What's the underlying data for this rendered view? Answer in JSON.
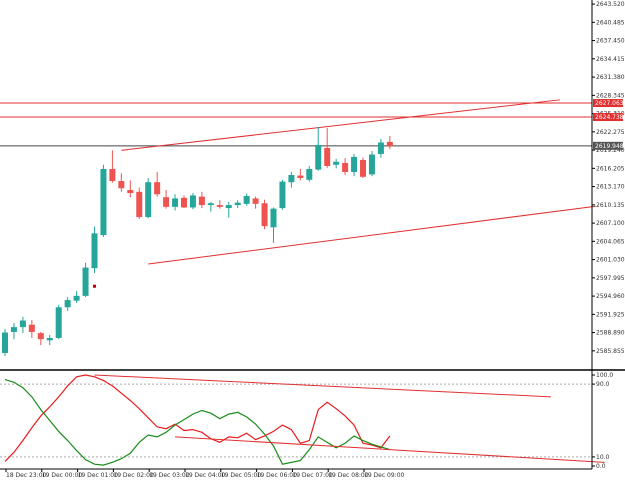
{
  "chart_data": [
    {
      "type": "candlestick",
      "x_ticks": [
        "18 Dec 23:00",
        "19 Dec 00:00",
        "19 Dec 01:00",
        "19 Dec 02:00",
        "19 Dec 03:00",
        "19 Dec 04:00",
        "19 Dec 05:00",
        "19 Dec 06:00",
        "19 Dec 07:00",
        "19 Dec 08:00",
        "19 Dec 09:00"
      ],
      "y_ticks": [
        "2643.520",
        "2640.485",
        "2637.450",
        "2634.415",
        "2631.380",
        "2628.345",
        "2625.310",
        "2622.275",
        "2619.240",
        "2616.205",
        "2613.170",
        "2610.135",
        "2607.100",
        "2604.065",
        "2601.030",
        "2597.995",
        "2594.960",
        "2591.925",
        "2588.890",
        "2585.855"
      ],
      "ylim": [
        2584.0,
        2643.7
      ],
      "price_labels": [
        {
          "value": 2627.063,
          "text": "2627.063",
          "color": "#e03030"
        },
        {
          "value": 2624.738,
          "text": "2624.738",
          "color": "#e03030"
        },
        {
          "value": 2619.948,
          "text": "2619.948",
          "color": "#555555"
        }
      ],
      "horizontal_lines": [
        {
          "value": 2627.063,
          "color": "#e03030"
        },
        {
          "value": 2624.738,
          "color": "#e03030"
        },
        {
          "value": 2619.948,
          "color": "#444444"
        }
      ],
      "trendlines": [
        {
          "from": [
            13,
            2619.2
          ],
          "to": [
            62,
            2627.6
          ],
          "color": "#e03030"
        },
        {
          "from": [
            16,
            2600.3
          ],
          "to": [
            66,
            2609.9
          ],
          "color": "#e03030"
        }
      ],
      "marker": {
        "x": 10,
        "value": 2596.6,
        "color": "#c00000"
      },
      "up_color": "#26a69a",
      "down_color": "#ef5350",
      "candles": [
        {
          "x": 0,
          "o": 2585.5,
          "h": 2589.5,
          "l": 2585.0,
          "c": 2588.9
        },
        {
          "x": 1,
          "o": 2589.0,
          "h": 2590.5,
          "l": 2587.8,
          "c": 2589.8
        },
        {
          "x": 2,
          "o": 2589.8,
          "h": 2591.5,
          "l": 2588.8,
          "c": 2590.9
        },
        {
          "x": 3,
          "o": 2590.2,
          "h": 2591.0,
          "l": 2588.0,
          "c": 2589.0
        },
        {
          "x": 4,
          "o": 2588.8,
          "h": 2589.0,
          "l": 2586.8,
          "c": 2587.8
        },
        {
          "x": 5,
          "o": 2587.6,
          "h": 2588.5,
          "l": 2586.8,
          "c": 2588.0
        },
        {
          "x": 6,
          "o": 2588.0,
          "h": 2593.5,
          "l": 2587.8,
          "c": 2593.1
        },
        {
          "x": 7,
          "o": 2593.1,
          "h": 2594.8,
          "l": 2592.5,
          "c": 2594.3
        },
        {
          "x": 8,
          "o": 2594.2,
          "h": 2595.8,
          "l": 2593.8,
          "c": 2595.0
        },
        {
          "x": 9,
          "o": 2595.0,
          "h": 2600.5,
          "l": 2594.8,
          "c": 2599.7
        },
        {
          "x": 10,
          "o": 2599.6,
          "h": 2606.5,
          "l": 2598.8,
          "c": 2605.4
        },
        {
          "x": 11,
          "o": 2605.1,
          "h": 2616.8,
          "l": 2604.8,
          "c": 2616.1
        },
        {
          "x": 12,
          "o": 2616.1,
          "h": 2619.2,
          "l": 2613.8,
          "c": 2614.1
        },
        {
          "x": 13,
          "o": 2614.1,
          "h": 2615.4,
          "l": 2612.3,
          "c": 2612.9
        },
        {
          "x": 14,
          "o": 2612.6,
          "h": 2614.2,
          "l": 2611.4,
          "c": 2612.1
        },
        {
          "x": 15,
          "o": 2612.3,
          "h": 2613.0,
          "l": 2607.8,
          "c": 2608.1
        },
        {
          "x": 16,
          "o": 2608.1,
          "h": 2614.6,
          "l": 2607.9,
          "c": 2613.9
        },
        {
          "x": 17,
          "o": 2613.9,
          "h": 2615.6,
          "l": 2611.5,
          "c": 2611.9
        },
        {
          "x": 18,
          "o": 2611.4,
          "h": 2612.6,
          "l": 2609.5,
          "c": 2609.8
        },
        {
          "x": 19,
          "o": 2609.8,
          "h": 2611.9,
          "l": 2609.2,
          "c": 2611.2
        },
        {
          "x": 20,
          "o": 2611.3,
          "h": 2611.7,
          "l": 2609.6,
          "c": 2609.7
        },
        {
          "x": 21,
          "o": 2609.7,
          "h": 2612.1,
          "l": 2609.4,
          "c": 2611.7
        },
        {
          "x": 22,
          "o": 2611.5,
          "h": 2612.3,
          "l": 2609.6,
          "c": 2610.1
        },
        {
          "x": 23,
          "o": 2610.1,
          "h": 2610.6,
          "l": 2609.0,
          "c": 2610.4
        },
        {
          "x": 24,
          "o": 2610.1,
          "h": 2610.9,
          "l": 2609.5,
          "c": 2609.8
        },
        {
          "x": 25,
          "o": 2609.6,
          "h": 2610.6,
          "l": 2608.0,
          "c": 2610.1
        },
        {
          "x": 26,
          "o": 2610.1,
          "h": 2610.9,
          "l": 2609.6,
          "c": 2610.5
        },
        {
          "x": 27,
          "o": 2610.3,
          "h": 2612.0,
          "l": 2610.0,
          "c": 2611.6
        },
        {
          "x": 28,
          "o": 2611.2,
          "h": 2611.5,
          "l": 2609.5,
          "c": 2610.3
        },
        {
          "x": 29,
          "o": 2610.4,
          "h": 2611.0,
          "l": 2606.1,
          "c": 2606.6
        },
        {
          "x": 30,
          "o": 2606.4,
          "h": 2609.7,
          "l": 2603.8,
          "c": 2609.5
        },
        {
          "x": 31,
          "o": 2609.6,
          "h": 2614.3,
          "l": 2609.3,
          "c": 2614.0
        },
        {
          "x": 32,
          "o": 2613.9,
          "h": 2615.6,
          "l": 2613.0,
          "c": 2615.1
        },
        {
          "x": 33,
          "o": 2615.0,
          "h": 2616.1,
          "l": 2614.2,
          "c": 2614.6
        },
        {
          "x": 34,
          "o": 2614.3,
          "h": 2616.6,
          "l": 2614.0,
          "c": 2616.1
        },
        {
          "x": 35,
          "o": 2616.0,
          "h": 2623.1,
          "l": 2615.8,
          "c": 2620.1
        },
        {
          "x": 36,
          "o": 2619.6,
          "h": 2622.9,
          "l": 2616.3,
          "c": 2616.6
        },
        {
          "x": 37,
          "o": 2616.8,
          "h": 2617.8,
          "l": 2616.2,
          "c": 2617.3
        },
        {
          "x": 38,
          "o": 2617.1,
          "h": 2617.9,
          "l": 2615.1,
          "c": 2615.6
        },
        {
          "x": 39,
          "o": 2615.6,
          "h": 2618.6,
          "l": 2614.9,
          "c": 2618.1
        },
        {
          "x": 40,
          "o": 2617.6,
          "h": 2618.0,
          "l": 2614.6,
          "c": 2614.8
        },
        {
          "x": 41,
          "o": 2615.2,
          "h": 2619.1,
          "l": 2614.9,
          "c": 2618.5
        },
        {
          "x": 42,
          "o": 2618.6,
          "h": 2621.1,
          "l": 2618.0,
          "c": 2620.5
        },
        {
          "x": 43,
          "o": 2620.6,
          "h": 2621.6,
          "l": 2619.4,
          "c": 2619.9
        }
      ]
    },
    {
      "type": "line",
      "ylim": [
        0,
        100
      ],
      "y_ticks": [
        "100.0",
        "90.0",
        "10.0",
        "0.0"
      ],
      "y_tick_values": [
        100,
        90,
        10,
        0
      ],
      "level_lines": [
        90,
        10
      ],
      "series": [
        {
          "color": "#e81c1c",
          "values": [
            5,
            15,
            28,
            42,
            55,
            65,
            76,
            88,
            98,
            100,
            98,
            94,
            88,
            80,
            72,
            63,
            53,
            43,
            41,
            46,
            39,
            40,
            37,
            30,
            26,
            32,
            31,
            36,
            29,
            33,
            38,
            45,
            40,
            25,
            28,
            62,
            70,
            63,
            55,
            45,
            25,
            23,
            20,
            33
          ]
        },
        {
          "color": "#1a8c1a",
          "values": [
            95,
            92,
            86,
            76,
            62,
            50,
            38,
            28,
            17,
            7,
            2,
            1,
            4,
            8,
            14,
            26,
            34,
            32,
            37,
            45,
            51,
            57,
            61,
            58,
            52,
            57,
            59,
            54,
            46,
            35,
            22,
            2,
            4,
            6,
            18,
            32,
            26,
            20,
            25,
            33,
            28,
            24,
            21,
            18
          ]
        }
      ],
      "trendlines": [
        {
          "from": [
            10,
            100
          ],
          "to": [
            61,
            76
          ],
          "color": "#e03030"
        },
        {
          "from": [
            19,
            32
          ],
          "to": [
            67,
            4
          ],
          "color": "#e03030"
        }
      ]
    }
  ]
}
